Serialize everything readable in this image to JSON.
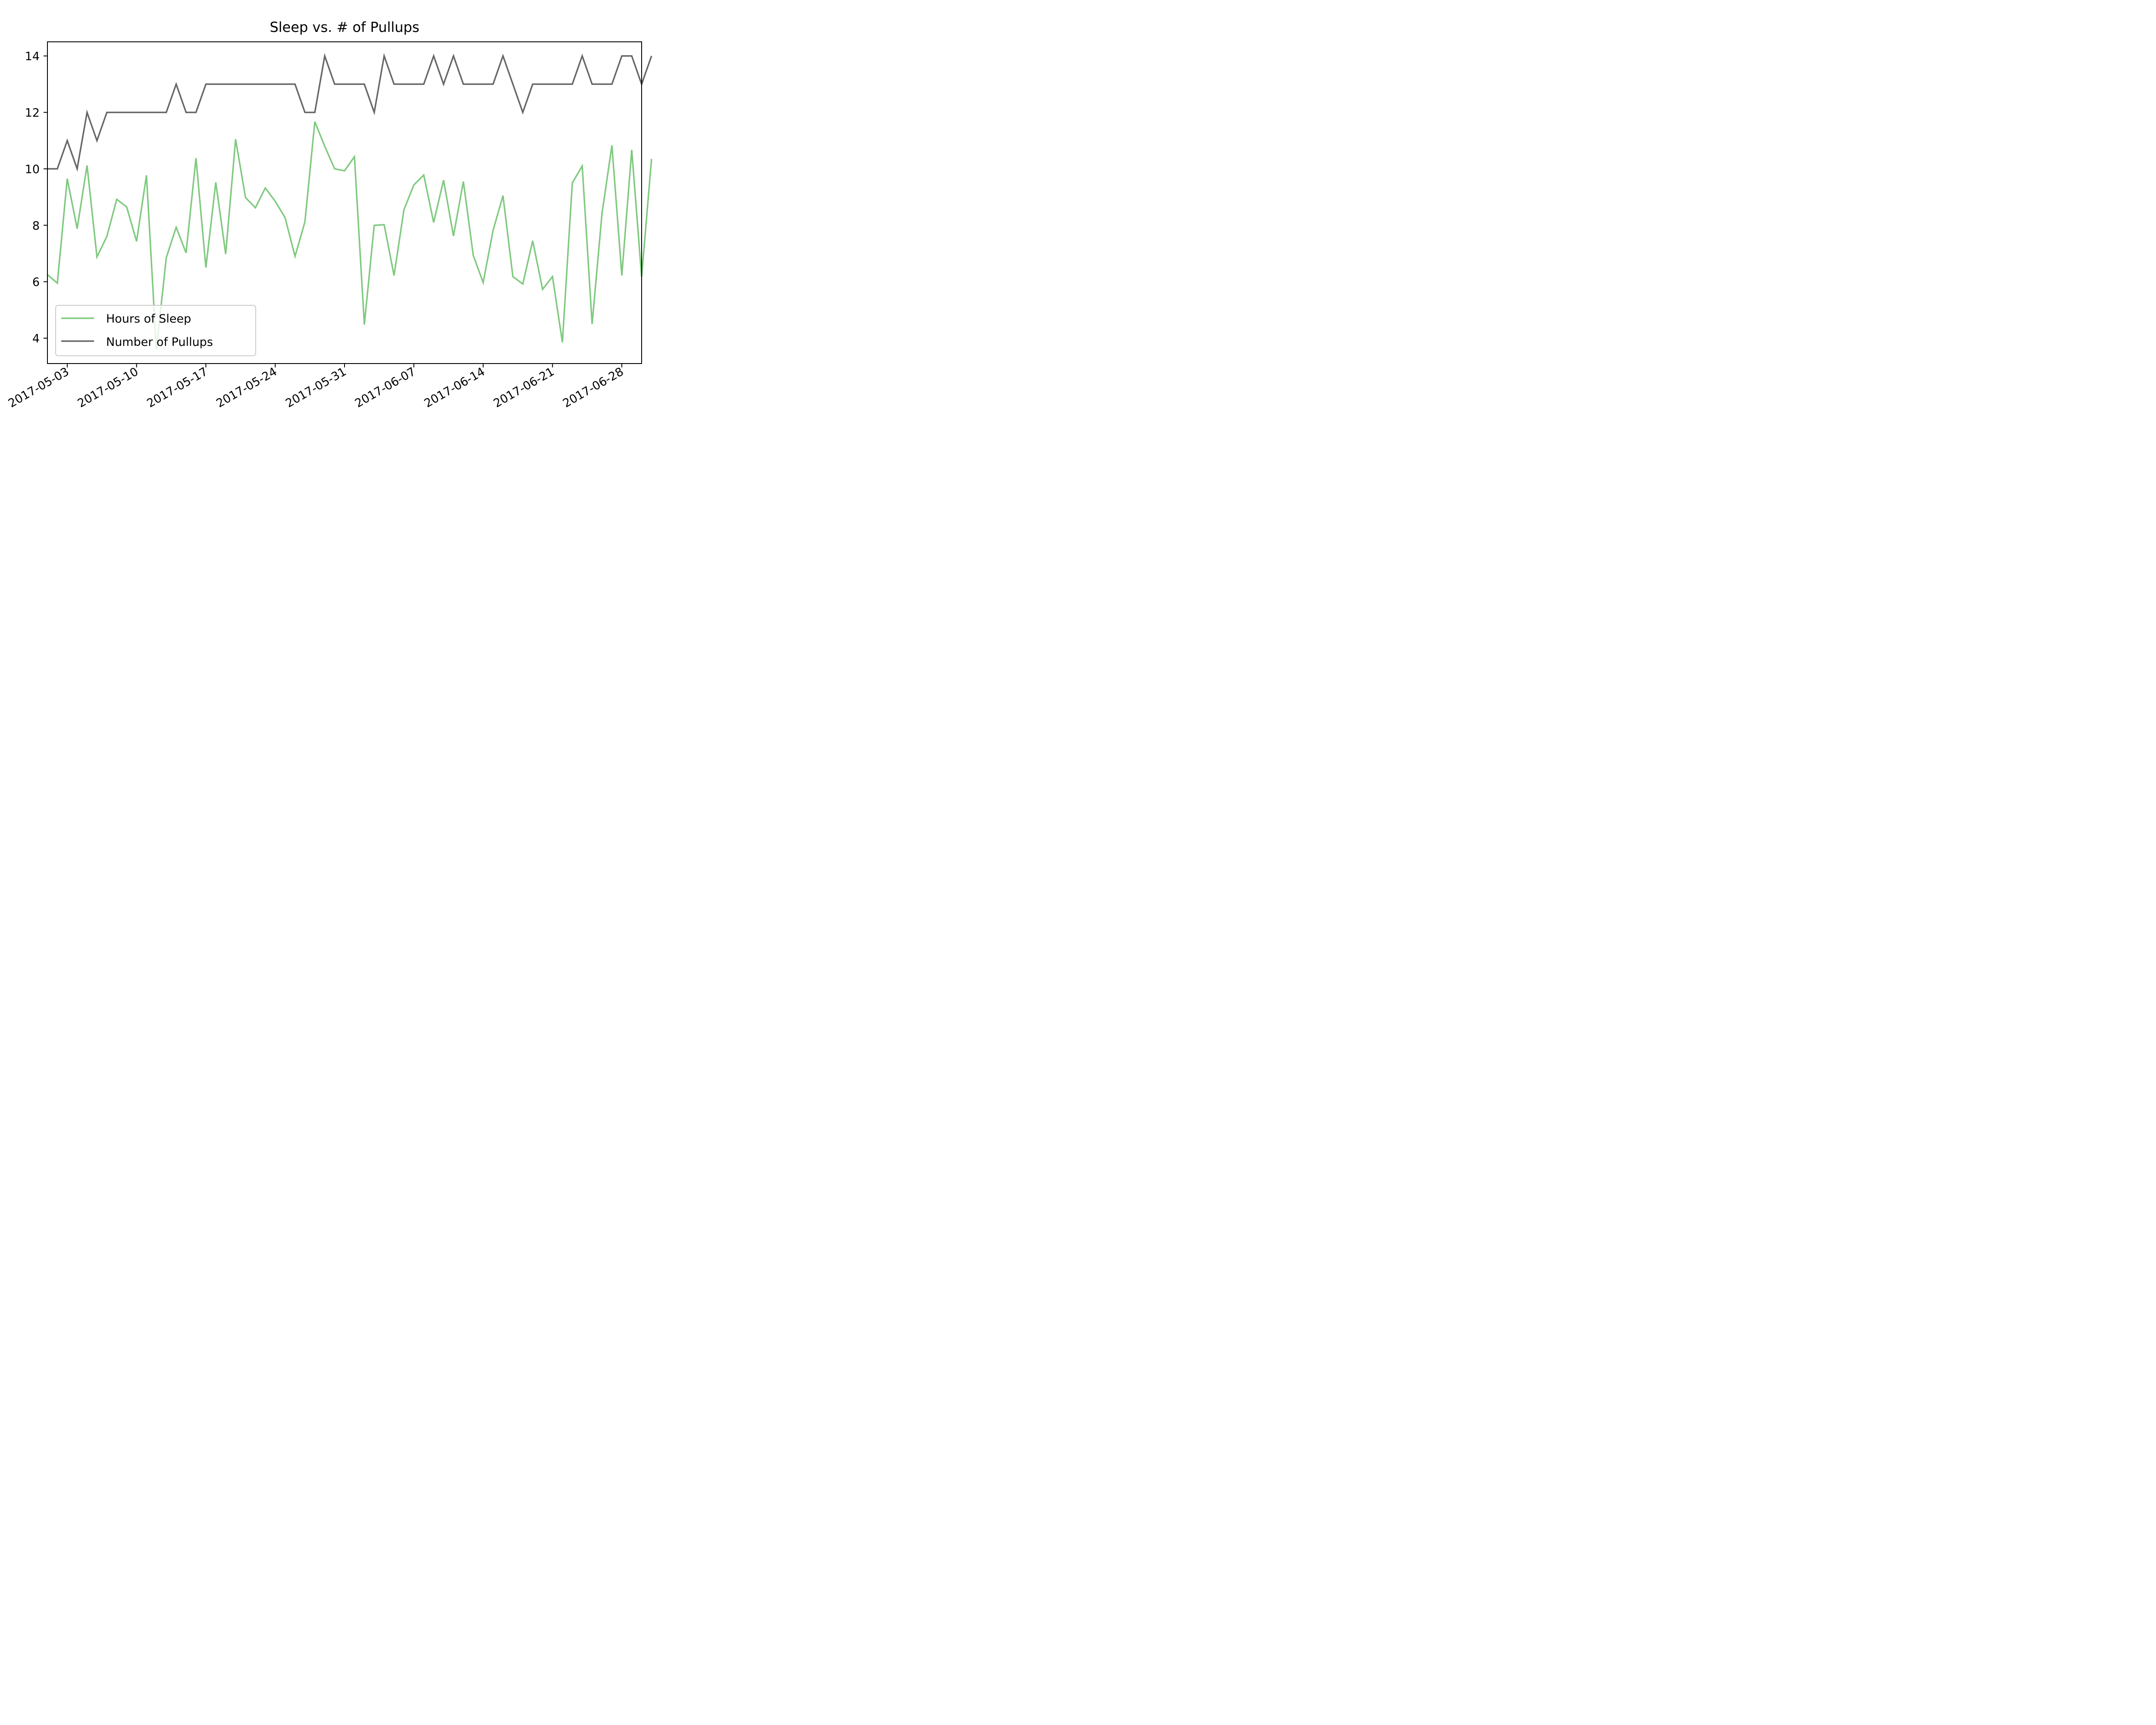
{
  "chart_data": {
    "type": "line",
    "title": "Sleep vs. # of Pullups",
    "xlabel": "",
    "ylabel": "",
    "x_start": "2017-05-01",
    "x_end": "2017-06-30",
    "xlim": [
      "2017-05-01",
      "2017-06-30"
    ],
    "ylim": [
      3.1,
      14.5
    ],
    "y_ticks": [
      4,
      6,
      8,
      10,
      12,
      14
    ],
    "x_ticks": [
      "2017-05-03",
      "2017-05-10",
      "2017-05-17",
      "2017-05-24",
      "2017-05-31",
      "2017-06-07",
      "2017-06-14",
      "2017-06-21",
      "2017-06-28"
    ],
    "grid": false,
    "legend_position": "lower-left",
    "series": [
      {
        "name": "Hours of Sleep",
        "color": "#7fc97f",
        "values": [
          6.25,
          5.95,
          9.65,
          7.88,
          10.12,
          6.88,
          7.6,
          8.92,
          8.65,
          7.43,
          9.77,
          3.6,
          6.85,
          7.93,
          7.02,
          10.38,
          6.5,
          9.52,
          6.98,
          11.05,
          8.98,
          8.62,
          9.32,
          8.85,
          8.27,
          6.9,
          8.12,
          11.67,
          10.8,
          10.0,
          9.93,
          10.43,
          4.48,
          8.0,
          8.02,
          6.22,
          8.55,
          9.43,
          9.78,
          8.1,
          9.6,
          7.62,
          9.55,
          6.93,
          5.97,
          7.82,
          9.05,
          6.18,
          5.92,
          7.45,
          5.73,
          6.18,
          3.85,
          9.5,
          10.1,
          4.5,
          8.42,
          10.83,
          6.22,
          10.67,
          6.17,
          10.35
        ]
      },
      {
        "name": "Number of Pullups",
        "color": "#666666",
        "values": [
          10,
          10,
          11,
          10,
          12,
          11,
          12,
          12,
          12,
          12,
          12,
          12,
          12,
          13,
          12,
          12,
          13,
          13,
          13,
          13,
          13,
          13,
          13,
          13,
          13,
          13,
          12,
          12,
          14,
          13,
          13,
          13,
          13,
          12,
          14,
          13,
          13,
          13,
          13,
          14,
          13,
          14,
          13,
          13,
          13,
          13,
          14,
          13,
          12,
          13,
          13,
          13,
          13,
          13,
          14,
          13,
          13,
          13,
          14,
          14,
          13,
          14
        ]
      }
    ]
  }
}
